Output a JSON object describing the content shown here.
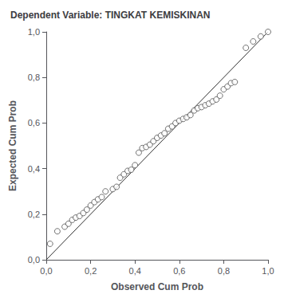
{
  "chart_data": {
    "type": "scatter",
    "title": "Dependent Variable: TINGKAT KEMISKINAN",
    "xlabel": "Observed Cum Prob",
    "ylabel": "Expected Cum Prob",
    "xlim": [
      0.0,
      1.0
    ],
    "ylim": [
      0.0,
      1.0
    ],
    "xticks": [
      {
        "value": 0.0,
        "label": "0,0"
      },
      {
        "value": 0.2,
        "label": "0,2"
      },
      {
        "value": 0.4,
        "label": "0,4"
      },
      {
        "value": 0.6,
        "label": "0,6"
      },
      {
        "value": 0.8,
        "label": "0,8"
      },
      {
        "value": 1.0,
        "label": "1,0"
      }
    ],
    "yticks": [
      {
        "value": 0.0,
        "label": "0,0"
      },
      {
        "value": 0.2,
        "label": "0,2"
      },
      {
        "value": 0.4,
        "label": "0,4"
      },
      {
        "value": 0.6,
        "label": "0,6"
      },
      {
        "value": 0.8,
        "label": "0,8"
      },
      {
        "value": 1.0,
        "label": "1,0"
      }
    ],
    "grid": false,
    "series": [
      {
        "type": "scatter",
        "color": "#505050",
        "marker": "open_circle",
        "x": [
          0.017,
          0.05,
          0.083,
          0.1,
          0.117,
          0.133,
          0.15,
          0.167,
          0.183,
          0.2,
          0.217,
          0.233,
          0.25,
          0.267,
          0.3,
          0.317,
          0.333,
          0.35,
          0.367,
          0.383,
          0.4,
          0.417,
          0.433,
          0.45,
          0.467,
          0.483,
          0.5,
          0.517,
          0.533,
          0.55,
          0.567,
          0.583,
          0.6,
          0.617,
          0.633,
          0.65,
          0.667,
          0.683,
          0.7,
          0.717,
          0.733,
          0.75,
          0.767,
          0.783,
          0.8,
          0.817,
          0.833,
          0.85,
          0.9,
          0.933,
          0.967,
          1.0
        ],
        "values": [
          0.07,
          0.125,
          0.145,
          0.158,
          0.175,
          0.185,
          0.192,
          0.205,
          0.22,
          0.238,
          0.253,
          0.265,
          0.275,
          0.3,
          0.31,
          0.32,
          0.36,
          0.375,
          0.39,
          0.395,
          0.415,
          0.47,
          0.49,
          0.495,
          0.505,
          0.52,
          0.535,
          0.545,
          0.555,
          0.575,
          0.585,
          0.6,
          0.61,
          0.618,
          0.625,
          0.635,
          0.655,
          0.665,
          0.67,
          0.678,
          0.685,
          0.695,
          0.703,
          0.72,
          0.748,
          0.76,
          0.775,
          0.78,
          0.93,
          0.958,
          0.98,
          1.0
        ]
      },
      {
        "type": "line",
        "color": "#303030",
        "line_style": "solid",
        "x": [
          0,
          1
        ],
        "values": [
          0,
          1
        ]
      }
    ]
  }
}
